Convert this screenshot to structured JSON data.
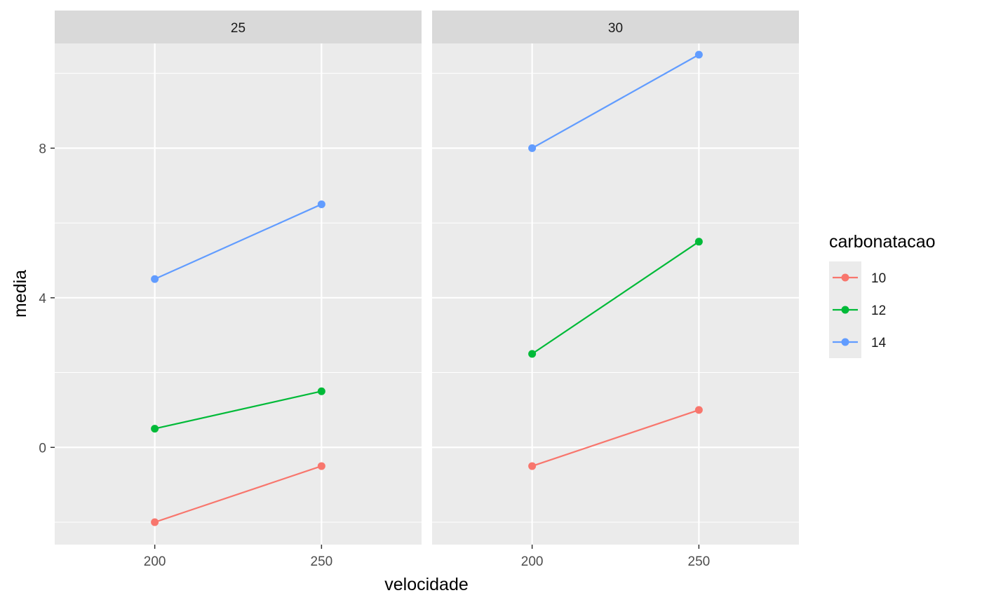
{
  "chart_data": {
    "type": "line",
    "xlabel": "velocidade",
    "ylabel": "media",
    "x_ticks": [
      200,
      250
    ],
    "y_ticks": [
      0,
      4,
      8
    ],
    "xlim": [
      170,
      280
    ],
    "ylim": [
      -2.6,
      10.8
    ],
    "grid": true,
    "legend": {
      "title": "carbonatacao",
      "position": "right",
      "entries": [
        "10",
        "12",
        "14"
      ]
    },
    "colors": {
      "10": "#f8766d",
      "12": "#00ba38",
      "14": "#619cff"
    },
    "panels": [
      {
        "label": "25",
        "series": [
          {
            "name": "10",
            "x": [
              200,
              250
            ],
            "values": [
              -2.0,
              -0.5
            ]
          },
          {
            "name": "12",
            "x": [
              200,
              250
            ],
            "values": [
              0.5,
              1.5
            ]
          },
          {
            "name": "14",
            "x": [
              200,
              250
            ],
            "values": [
              4.5,
              6.5
            ]
          }
        ]
      },
      {
        "label": "30",
        "series": [
          {
            "name": "10",
            "x": [
              200,
              250
            ],
            "values": [
              -0.5,
              1.0
            ]
          },
          {
            "name": "12",
            "x": [
              200,
              250
            ],
            "values": [
              2.5,
              5.5
            ]
          },
          {
            "name": "14",
            "x": [
              200,
              250
            ],
            "values": [
              8.0,
              10.5
            ]
          }
        ]
      }
    ]
  }
}
